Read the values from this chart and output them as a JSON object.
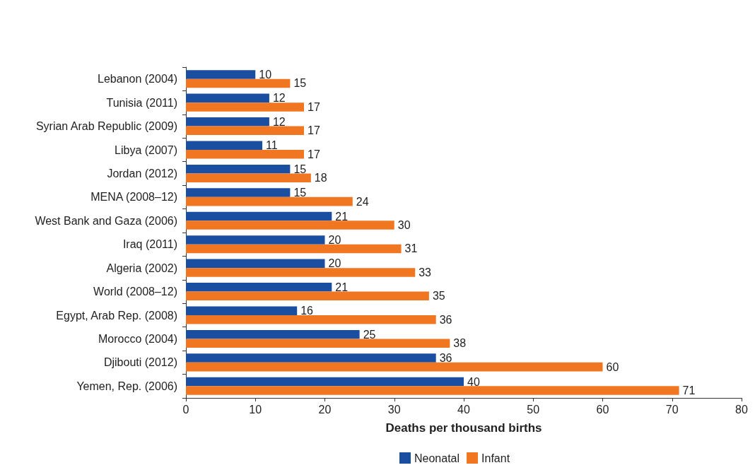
{
  "chart_data": {
    "type": "bar",
    "orientation": "horizontal",
    "xlabel": "Deaths per thousand births",
    "categories": [
      "Lebanon (2004)",
      "Tunisia (2011)",
      "Syrian Arab Republic (2009)",
      "Libya (2007)",
      "Jordan (2012)",
      "MENA (2008–12)",
      "West Bank and Gaza (2006)",
      "Iraq (2011)",
      "Algeria (2002)",
      "World (2008–12)",
      "Egypt, Arab Rep. (2008)",
      "Morocco (2004)",
      "Djibouti (2012)",
      "Yemen, Rep. (2006)"
    ],
    "series": [
      {
        "name": "Neonatal",
        "color": "#1a4ea0",
        "values": [
          10,
          12,
          12,
          11,
          15,
          15,
          21,
          20,
          20,
          21,
          16,
          25,
          36,
          40
        ]
      },
      {
        "name": "Infant",
        "color": "#f07622",
        "values": [
          15,
          17,
          17,
          17,
          18,
          24,
          30,
          31,
          33,
          35,
          36,
          38,
          60,
          71
        ]
      }
    ],
    "xlim": [
      0,
      80
    ],
    "xticks": [
      0,
      10,
      20,
      30,
      40,
      50,
      60,
      70,
      80
    ],
    "data_labels": true,
    "grid": false,
    "legend": "bottom"
  }
}
